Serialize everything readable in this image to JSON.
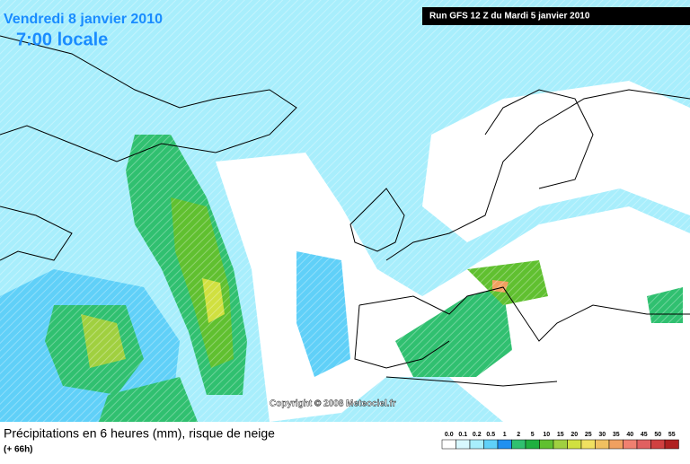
{
  "header": {
    "date": "Vendredi 8 janvier 2010",
    "time": "7:00 locale",
    "run": "Run GFS 12 Z du Mardi 5 janvier 2010"
  },
  "copyright": "Copyright © 2008 Meteociel.fr",
  "footer": {
    "title": "Précipitations en 6 heures (mm), risque de neige",
    "lead": "(+ 66h)"
  },
  "legend": {
    "colors": [
      "#ffffff",
      "#d8f8ff",
      "#a8eefc",
      "#60d0f8",
      "#2090f0",
      "#30c070",
      "#20b040",
      "#60c030",
      "#a0d040",
      "#d0e040",
      "#f0e060",
      "#f0c060",
      "#f0a060",
      "#f08070",
      "#e06060",
      "#d04040",
      "#b02020"
    ],
    "ticks": [
      {
        "value": 0,
        "label": "0.0"
      },
      0.1,
      0.2,
      0.5,
      1,
      2,
      5,
      10,
      15,
      20,
      25,
      30,
      35,
      40,
      45,
      50,
      55
    ]
  }
}
